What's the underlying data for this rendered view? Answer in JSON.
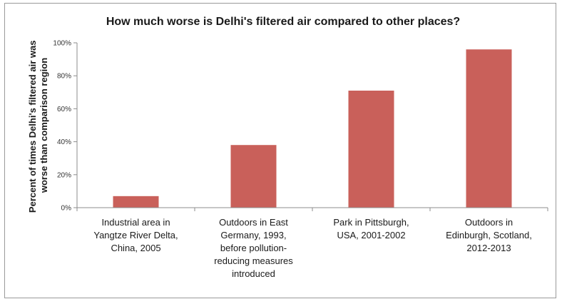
{
  "chart_data": {
    "type": "bar",
    "title": "How much worse is Delhi's filtered air compared to other places?",
    "ylabel_lines": [
      "Percent of times Delhi's filtered air was",
      "worse than comparison region"
    ],
    "xlabel": "",
    "ylim": [
      0,
      100
    ],
    "yticks": [
      0,
      20,
      40,
      60,
      80,
      100
    ],
    "ytick_suffix": "%",
    "grid": false,
    "legend": "none",
    "bar_color": "#c9605a",
    "categories": [
      "Industrial area in Yangtze River Delta, China, 2005",
      "Outdoors in East Germany, 1993, before pollution-reducing measures introduced",
      "Park in Pittsburgh, USA, 2001-2002",
      "Outdoors in Edinburgh, Scotland, 2012-2013"
    ],
    "category_lines": [
      [
        "Industrial area in",
        "Yangtze River Delta,",
        "China, 2005"
      ],
      [
        "Outdoors in East",
        "Germany, 1993,",
        "before pollution-",
        "reducing measures",
        "introduced"
      ],
      [
        "Park in Pittsburgh,",
        "USA, 2001-2002"
      ],
      [
        "Outdoors in",
        "Edinburgh, Scotland,",
        "2012-2013"
      ]
    ],
    "values": [
      7,
      38,
      71,
      96
    ]
  }
}
